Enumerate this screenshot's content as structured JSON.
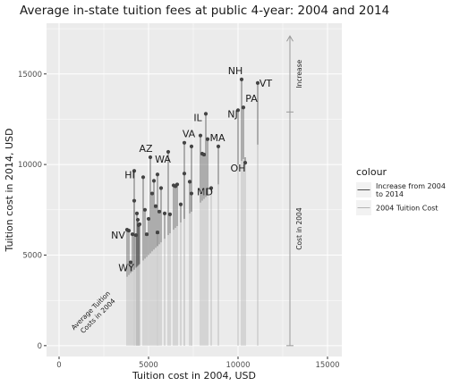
{
  "chart_data": {
    "type": "scatter",
    "title": "Average in-state tuition fees at public 4-year: 2004 and 2014",
    "xlabel": "Tuition cost in 2004, USD",
    "ylabel": "Tuition cost in 2014, USD",
    "xlim": [
      -700,
      15800
    ],
    "ylim": [
      -600,
      17800
    ],
    "x_ticks": [
      0,
      5000,
      10000,
      15000
    ],
    "x_tick_labels": [
      "0",
      "5000",
      "10000",
      "15000"
    ],
    "y_ticks": [
      0,
      5000,
      10000,
      15000
    ],
    "y_tick_labels": [
      "0",
      "5000",
      "10000",
      "15000"
    ],
    "grid": true,
    "legend": {
      "title": "colour",
      "position": "right",
      "entries": [
        {
          "label": "Increase from 2004 to 2014",
          "color": "#4d4d4d"
        },
        {
          "label": "2004 Tuition Cost",
          "color": "#b3b3b3"
        }
      ]
    },
    "colors": {
      "panel": "#ebebeb",
      "grid_major": "#ffffff",
      "point": "#444444",
      "increase_segment": "#4d4d4d",
      "base_segment": "#b3b3b3",
      "arrow": "#9a9a9a"
    },
    "annotations": {
      "diagonal": "Average Tuition\nCosts in 2004",
      "arrow_increase": "Increase",
      "arrow_base": "Cost in 2004"
    },
    "arrow": {
      "x": 12900,
      "y_base": 12900,
      "y_top": 17100
    },
    "points": [
      {
        "x": 3800,
        "y": 6400
      },
      {
        "x": 3900,
        "y": 6350
      },
      {
        "x": 4000,
        "y": 4600
      },
      {
        "x": 4100,
        "y": 6150
      },
      {
        "x": 4200,
        "y": 8000
      },
      {
        "x": 4200,
        "y": 9650
      },
      {
        "x": 4300,
        "y": 6100
      },
      {
        "x": 4350,
        "y": 7300
      },
      {
        "x": 4400,
        "y": 6950
      },
      {
        "x": 4450,
        "y": 6650
      },
      {
        "x": 4500,
        "y": 6700
      },
      {
        "x": 4700,
        "y": 9300
      },
      {
        "x": 4800,
        "y": 7500
      },
      {
        "x": 4900,
        "y": 6150
      },
      {
        "x": 5000,
        "y": 7000
      },
      {
        "x": 5100,
        "y": 10400
      },
      {
        "x": 5200,
        "y": 8400
      },
      {
        "x": 5300,
        "y": 9100
      },
      {
        "x": 5400,
        "y": 7700
      },
      {
        "x": 5500,
        "y": 9450
      },
      {
        "x": 5500,
        "y": 6250
      },
      {
        "x": 5600,
        "y": 7400
      },
      {
        "x": 5700,
        "y": 8700
      },
      {
        "x": 5900,
        "y": 7300
      },
      {
        "x": 6100,
        "y": 10700
      },
      {
        "x": 6200,
        "y": 7250
      },
      {
        "x": 6400,
        "y": 8850
      },
      {
        "x": 6500,
        "y": 8800
      },
      {
        "x": 6600,
        "y": 8900
      },
      {
        "x": 6800,
        "y": 7800
      },
      {
        "x": 7000,
        "y": 9500
      },
      {
        "x": 7000,
        "y": 11200
      },
      {
        "x": 7300,
        "y": 9050
      },
      {
        "x": 7400,
        "y": 11000
      },
      {
        "x": 7400,
        "y": 8400
      },
      {
        "x": 7900,
        "y": 11600
      },
      {
        "x": 8000,
        "y": 10600
      },
      {
        "x": 8100,
        "y": 10550
      },
      {
        "x": 8200,
        "y": 12800
      },
      {
        "x": 8300,
        "y": 11400
      },
      {
        "x": 8500,
        "y": 8700
      },
      {
        "x": 8900,
        "y": 11000
      },
      {
        "x": 10000,
        "y": 13000
      },
      {
        "x": 10200,
        "y": 14700
      },
      {
        "x": 10300,
        "y": 13150
      },
      {
        "x": 10400,
        "y": 10100
      },
      {
        "x": 11100,
        "y": 14500
      }
    ],
    "labels": [
      {
        "text": "NH",
        "x": 9850,
        "y": 15000
      },
      {
        "text": "VT",
        "x": 11550,
        "y": 14300
      },
      {
        "text": "PA",
        "x": 10750,
        "y": 13450
      },
      {
        "text": "NJ",
        "x": 9700,
        "y": 12600
      },
      {
        "text": "IL",
        "x": 7750,
        "y": 12400
      },
      {
        "text": "MA",
        "x": 8850,
        "y": 11300
      },
      {
        "text": "VA",
        "x": 7250,
        "y": 11500
      },
      {
        "text": "OH",
        "x": 10000,
        "y": 9600
      },
      {
        "text": "AZ",
        "x": 4850,
        "y": 10700
      },
      {
        "text": "WA",
        "x": 5800,
        "y": 10100
      },
      {
        "text": "HI",
        "x": 3950,
        "y": 9250
      },
      {
        "text": "MD",
        "x": 8150,
        "y": 8300
      },
      {
        "text": "NV",
        "x": 3300,
        "y": 5900
      },
      {
        "text": "WY",
        "x": 3750,
        "y": 4100
      }
    ]
  }
}
